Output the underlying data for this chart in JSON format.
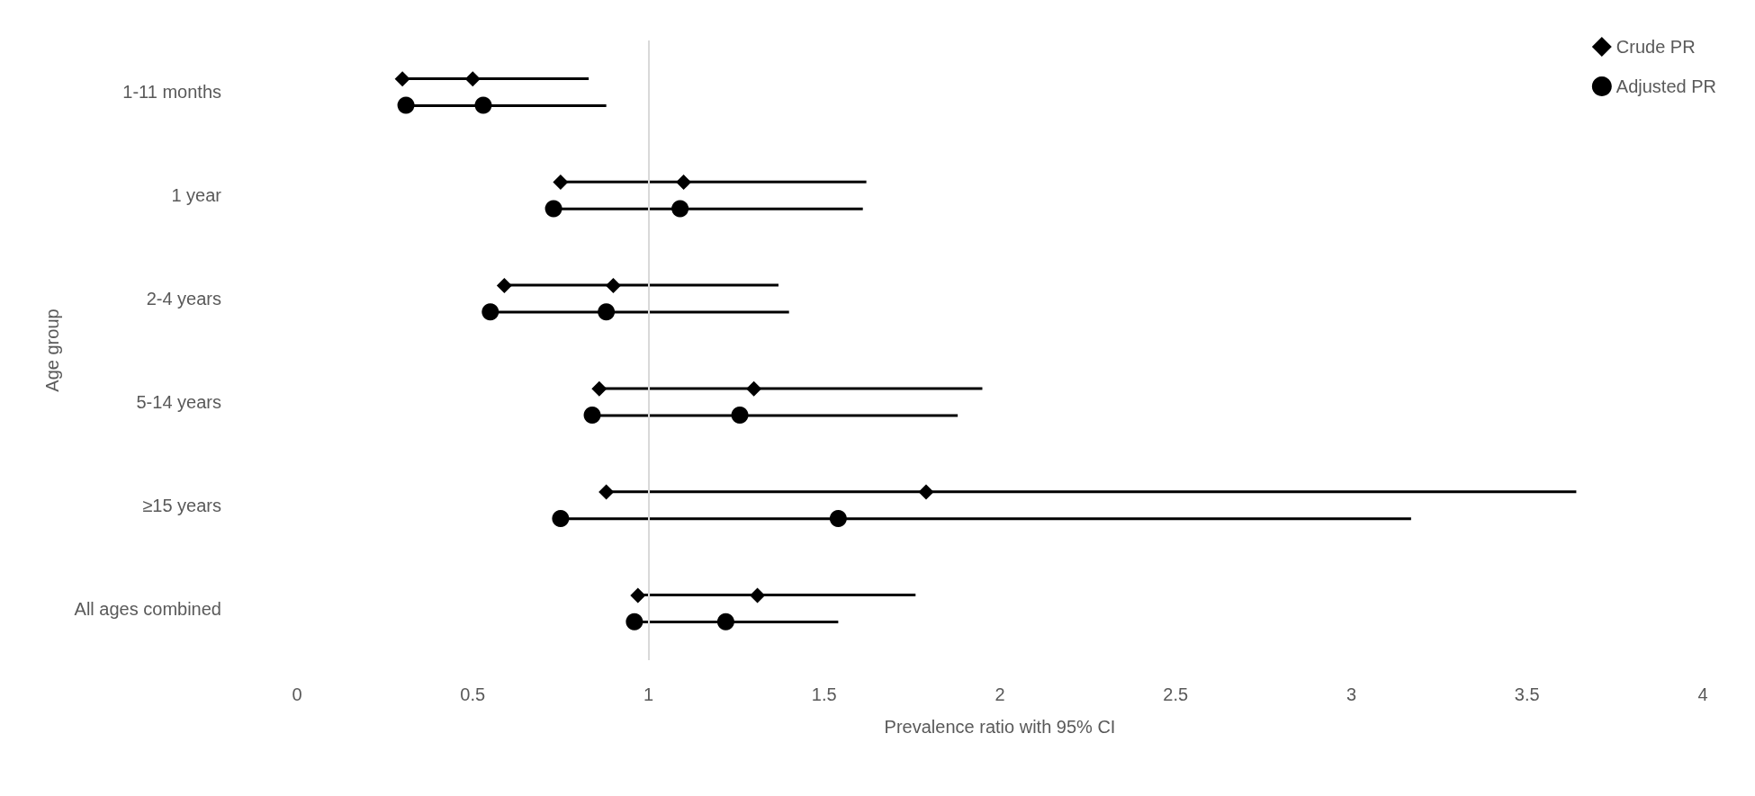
{
  "chart_data": {
    "type": "scatter",
    "orientation": "horizontal",
    "xlabel": "Prevalence ratio with 95% CI",
    "ylabel": "Age group",
    "categories": [
      "1-11 months",
      "1 year",
      "2-4 years",
      "5-14 years",
      "≥15 years",
      "All ages combined"
    ],
    "series": [
      {
        "type": "bar",
        "color": "#000000",
        "base": [
          0.3,
          0.75,
          0.59,
          0.86,
          0.88,
          0.97
        ],
        "values": [
          0.53,
          0.87,
          0.78,
          1.09,
          2.76,
          0.79
        ]
      },
      {
        "type": "bar",
        "color": "#000000",
        "base": [
          0.31,
          0.73,
          0.55,
          0.84,
          0.75,
          0.96
        ],
        "values": [
          0.57,
          0.88,
          0.85,
          1.04,
          2.42,
          0.58
        ]
      },
      {
        "name": "Crude PR",
        "color": "#000000",
        "marker": "diamond",
        "values": [
          0.5,
          1.1,
          0.9,
          1.3,
          1.79,
          1.31
        ]
      },
      {
        "name": "Adjusted PR",
        "color": "#000000",
        "marker": "circle",
        "values": [
          0.53,
          1.09,
          0.88,
          1.26,
          1.54,
          1.22
        ]
      },
      {
        "color": "#000000",
        "marker": "diamond",
        "values": [
          0.3,
          0.75,
          0.59,
          0.86,
          0.88,
          0.97
        ]
      },
      {
        "color": "#000000",
        "marker": "circle",
        "values": [
          0.31,
          0.73,
          0.55,
          0.84,
          0.75,
          0.96
        ]
      }
    ],
    "xlim": [
      0,
      4
    ],
    "xticks": [
      0,
      0.5,
      1,
      1.5,
      2,
      2.5,
      3,
      3.5,
      4
    ],
    "ref_lines": [
      {
        "axis": "x",
        "value": 1,
        "color": "#d9d9d9"
      }
    ],
    "grid": false,
    "legend": "top right"
  }
}
